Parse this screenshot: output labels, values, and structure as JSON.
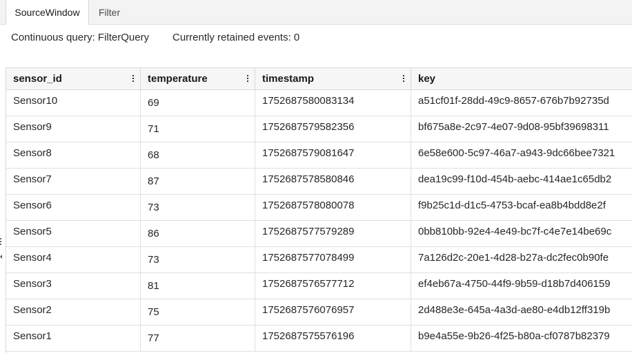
{
  "tabs": [
    {
      "label": "SourceWindow",
      "active": true
    },
    {
      "label": "Filter",
      "active": false
    }
  ],
  "info": {
    "query": "Continuous query: FilterQuery",
    "retained": "Currently retained events: 0"
  },
  "grid": {
    "columns": [
      {
        "label": "sensor_id",
        "has_menu": true
      },
      {
        "label": "temperature",
        "has_menu": true
      },
      {
        "label": "timestamp",
        "has_menu": true
      },
      {
        "label": "key",
        "has_menu": false
      }
    ],
    "rows": [
      {
        "sensor_id": "Sensor10",
        "temperature": "69",
        "timestamp": "1752687580083134",
        "key": "a51cf01f-28dd-49c9-8657-676b7b92735d"
      },
      {
        "sensor_id": "Sensor9",
        "temperature": "71",
        "timestamp": "1752687579582356",
        "key": "bf675a8e-2c97-4e07-9d08-95bf39698311"
      },
      {
        "sensor_id": "Sensor8",
        "temperature": "68",
        "timestamp": "1752687579081647",
        "key": "6e58e600-5c97-46a7-a943-9dc66bee7321"
      },
      {
        "sensor_id": "Sensor7",
        "temperature": "87",
        "timestamp": "1752687578580846",
        "key": "dea19c99-f10d-454b-aebc-414ae1c65db2"
      },
      {
        "sensor_id": "Sensor6",
        "temperature": "73",
        "timestamp": "1752687578080078",
        "key": "f9b25c1d-d1c5-4753-bcaf-ea8b4bdd8e2f"
      },
      {
        "sensor_id": "Sensor5",
        "temperature": "86",
        "timestamp": "1752687577579289",
        "key": "0bb810bb-92e4-4e49-bc7f-c4e7e14be69c"
      },
      {
        "sensor_id": "Sensor4",
        "temperature": "73",
        "timestamp": "1752687577078499",
        "key": "7a126d2c-20e1-4d28-b27a-dc2fec0b90fe"
      },
      {
        "sensor_id": "Sensor3",
        "temperature": "81",
        "timestamp": "1752687576577712",
        "key": "ef4eb67a-4750-44f9-9b59-d18b7d406159"
      },
      {
        "sensor_id": "Sensor2",
        "temperature": "75",
        "timestamp": "1752687576076957",
        "key": "2d488e3e-645a-4a3d-ae80-e4db12ff319b"
      },
      {
        "sensor_id": "Sensor1",
        "temperature": "77",
        "timestamp": "1752687575576196",
        "key": "b9e4a55e-9b26-4f25-b80a-cf0787b82379"
      }
    ]
  },
  "icons": {
    "column_menu": "kebab-menu-icon",
    "side_handle": "resize-handle-icon"
  }
}
